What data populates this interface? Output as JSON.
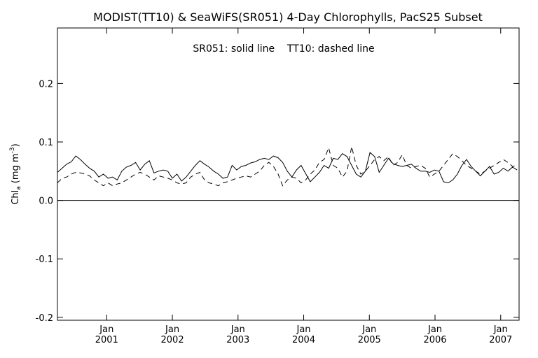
{
  "chart_data": {
    "type": "line",
    "title": "MODIST(TT10) & SeaWiFS(SR051) 4-Day Chlorophylls, PacS25 Subset",
    "annotation": "SR051: solid line    TT10: dashed line",
    "ylabel": "Chl",
    "ylabel_sub": "a",
    "ylabel_unit": "(mg m",
    "ylabel_sup": "-3",
    "ylabel_close": ")",
    "ylim": [
      -0.205,
      0.295
    ],
    "xlim": [
      2000.25,
      2007.28
    ],
    "y_ticks": [
      -0.2,
      -0.1,
      0.0,
      0.1,
      0.2
    ],
    "y_tick_labels": [
      "-0.2",
      "-0.1",
      "0.0",
      "0.1",
      "0.2"
    ],
    "x_ticks": [
      2001.0,
      2002.0,
      2003.0,
      2004.0,
      2005.0,
      2006.0,
      2007.0
    ],
    "x_tick_month_labels": [
      "Jan",
      "Jan",
      "Jan",
      "Jan",
      "Jan",
      "Jan",
      "Jan"
    ],
    "x_tick_year_labels": [
      "2001",
      "2002",
      "2003",
      "2004",
      "2005",
      "2006",
      "2007"
    ],
    "zero_line": 0.0,
    "grid": false,
    "series": [
      {
        "label": "SR051",
        "style": "solid",
        "color": "#000000",
        "x": [
          2000.25,
          2000.32,
          2000.39,
          2000.46,
          2000.53,
          2000.6,
          2000.67,
          2000.74,
          2000.81,
          2000.88,
          2000.95,
          2001.02,
          2001.09,
          2001.16,
          2001.23,
          2001.3,
          2001.37,
          2001.44,
          2001.51,
          2001.58,
          2001.65,
          2001.72,
          2001.79,
          2001.86,
          2001.93,
          2002.0,
          2002.07,
          2002.14,
          2002.21,
          2002.28,
          2002.35,
          2002.42,
          2002.49,
          2002.56,
          2002.63,
          2002.7,
          2002.77,
          2002.84,
          2002.91,
          2002.98,
          2003.05,
          2003.12,
          2003.19,
          2003.26,
          2003.33,
          2003.4,
          2003.47,
          2003.54,
          2003.61,
          2003.68,
          2003.75,
          2003.82,
          2003.89,
          2003.96,
          2004.03,
          2004.1,
          2004.17,
          2004.24,
          2004.31,
          2004.38,
          2004.45,
          2004.52,
          2004.59,
          2004.66,
          2004.73,
          2004.8,
          2004.87,
          2004.94,
          2005.01,
          2005.08,
          2005.15,
          2005.22,
          2005.29,
          2005.36,
          2005.43,
          2005.5,
          2005.57,
          2005.64,
          2005.71,
          2005.78,
          2005.85,
          2005.92,
          2005.99,
          2006.06,
          2006.13,
          2006.2,
          2006.27,
          2006.34,
          2006.41,
          2006.48,
          2006.55,
          2006.62,
          2006.69,
          2006.76,
          2006.83,
          2006.9,
          2006.97,
          2007.04,
          2007.11,
          2007.18,
          2007.25
        ],
        "y": [
          0.048,
          0.055,
          0.062,
          0.066,
          0.076,
          0.07,
          0.062,
          0.055,
          0.05,
          0.04,
          0.045,
          0.038,
          0.04,
          0.035,
          0.05,
          0.057,
          0.06,
          0.065,
          0.052,
          0.062,
          0.068,
          0.047,
          0.05,
          0.052,
          0.05,
          0.038,
          0.045,
          0.033,
          0.04,
          0.05,
          0.06,
          0.068,
          0.062,
          0.057,
          0.05,
          0.045,
          0.038,
          0.04,
          0.06,
          0.052,
          0.058,
          0.06,
          0.064,
          0.066,
          0.07,
          0.072,
          0.07,
          0.076,
          0.073,
          0.065,
          0.05,
          0.04,
          0.052,
          0.06,
          0.046,
          0.032,
          0.04,
          0.048,
          0.06,
          0.055,
          0.072,
          0.07,
          0.08,
          0.075,
          0.06,
          0.045,
          0.04,
          0.05,
          0.082,
          0.075,
          0.048,
          0.06,
          0.072,
          0.063,
          0.06,
          0.058,
          0.06,
          0.062,
          0.055,
          0.05,
          0.05,
          0.048,
          0.052,
          0.05,
          0.032,
          0.03,
          0.035,
          0.045,
          0.06,
          0.07,
          0.058,
          0.05,
          0.042,
          0.05,
          0.058,
          0.045,
          0.048,
          0.055,
          0.05,
          0.057,
          0.052
        ]
      },
      {
        "label": "TT10",
        "style": "dashed",
        "color": "#000000",
        "x": [
          2000.25,
          2000.32,
          2000.39,
          2000.46,
          2000.53,
          2000.6,
          2000.67,
          2000.74,
          2000.81,
          2000.88,
          2000.95,
          2001.02,
          2001.09,
          2001.16,
          2001.23,
          2001.3,
          2001.37,
          2001.44,
          2001.51,
          2001.58,
          2001.65,
          2001.72,
          2001.79,
          2001.86,
          2001.93,
          2002.0,
          2002.07,
          2002.14,
          2002.21,
          2002.28,
          2002.35,
          2002.42,
          2002.49,
          2002.56,
          2002.63,
          2002.7,
          2002.77,
          2002.84,
          2002.91,
          2002.98,
          2003.05,
          2003.12,
          2003.19,
          2003.26,
          2003.33,
          2003.4,
          2003.47,
          2003.54,
          2003.61,
          2003.68,
          2003.75,
          2003.82,
          2003.89,
          2003.96,
          2004.03,
          2004.1,
          2004.17,
          2004.24,
          2004.31,
          2004.38,
          2004.45,
          2004.52,
          2004.59,
          2004.66,
          2004.73,
          2004.8,
          2004.87,
          2004.94,
          2005.01,
          2005.08,
          2005.15,
          2005.22,
          2005.29,
          2005.36,
          2005.43,
          2005.5,
          2005.57,
          2005.64,
          2005.71,
          2005.78,
          2005.85,
          2005.92,
          2005.99,
          2006.06,
          2006.13,
          2006.2,
          2006.27,
          2006.34,
          2006.41,
          2006.48,
          2006.55,
          2006.62,
          2006.69,
          2006.76,
          2006.83,
          2006.9,
          2006.97,
          2007.04,
          2007.11,
          2007.18,
          2007.25
        ],
        "y": [
          0.03,
          0.038,
          0.04,
          0.045,
          0.048,
          0.047,
          0.045,
          0.042,
          0.035,
          0.03,
          0.025,
          0.03,
          0.025,
          0.028,
          0.03,
          0.035,
          0.04,
          0.045,
          0.048,
          0.045,
          0.04,
          0.035,
          0.042,
          0.04,
          0.038,
          0.035,
          0.03,
          0.028,
          0.03,
          0.04,
          0.045,
          0.048,
          0.035,
          0.03,
          0.028,
          0.025,
          0.03,
          0.032,
          0.035,
          0.038,
          0.04,
          0.042,
          0.04,
          0.045,
          0.05,
          0.06,
          0.065,
          0.058,
          0.045,
          0.025,
          0.035,
          0.04,
          0.038,
          0.03,
          0.035,
          0.045,
          0.052,
          0.065,
          0.07,
          0.09,
          0.06,
          0.055,
          0.04,
          0.05,
          0.092,
          0.06,
          0.045,
          0.05,
          0.06,
          0.07,
          0.075,
          0.068,
          0.075,
          0.06,
          0.065,
          0.078,
          0.06,
          0.055,
          0.058,
          0.06,
          0.055,
          0.04,
          0.045,
          0.05,
          0.06,
          0.07,
          0.08,
          0.075,
          0.068,
          0.06,
          0.055,
          0.05,
          0.045,
          0.05,
          0.055,
          0.06,
          0.065,
          0.07,
          0.065,
          0.058,
          0.06
        ]
      }
    ]
  }
}
